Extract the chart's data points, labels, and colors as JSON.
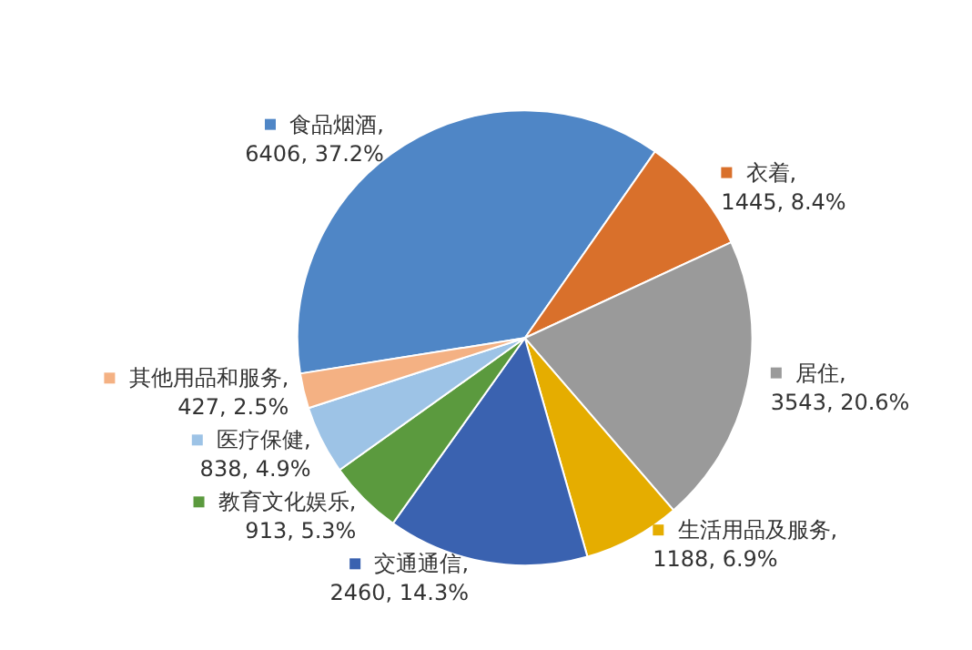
{
  "chart_data": {
    "type": "pie",
    "categories": [
      "食品烟酒",
      "衣着",
      "居住",
      "生活用品及服务",
      "交通通信",
      "教育文化娱乐",
      "医疗保健",
      "其他用品和服务"
    ],
    "values": [
      6406,
      1445,
      3543,
      1188,
      2460,
      913,
      838,
      427
    ],
    "colors": [
      "#4f86c6",
      "#d9702b",
      "#9a9a9a",
      "#e5ad00",
      "#3a62b0",
      "#5b9a3e",
      "#9dc3e6",
      "#f4b183"
    ],
    "legend": true,
    "value_labels": [
      ",\n6406, 37.2%",
      ",\n1445, 8.4%",
      ",\n3543, 20.6%",
      ",\n1188, 6.9%",
      ",\n2460, 14.3%",
      ",\n913, 5.3%",
      ",\n838, 4.9%",
      ",\n427, 2.5%"
    ]
  }
}
